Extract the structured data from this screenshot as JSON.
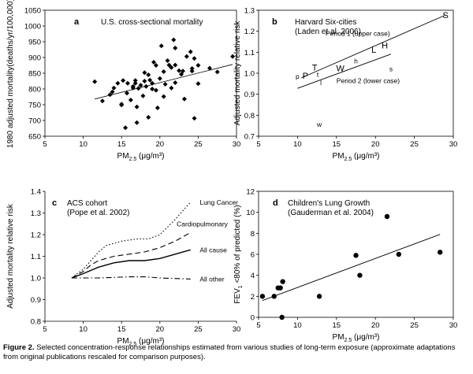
{
  "panels": [
    {
      "letter": "a",
      "title": [
        "U.S. cross-sectional mortality"
      ],
      "ylabel": "1980 adjusted mortality(deaths/yr/100,000)",
      "xlabel": "PM2.5 (μg/m³)",
      "xticks": [
        "5",
        "10",
        "15",
        "20",
        "25",
        "30"
      ],
      "yticks": [
        "650",
        "700",
        "750",
        "800",
        "850",
        "900",
        "950",
        "1000",
        "1050"
      ],
      "annotations": []
    },
    {
      "letter": "b",
      "title": [
        "Harvard Six-cities",
        "(Laden et al. 2006)"
      ],
      "ylabel": "Adjusted mortality relative risk",
      "xlabel": "PM2.5 (μg/m³)",
      "xticks": [
        "5",
        "10",
        "15",
        "20",
        "25",
        "30"
      ],
      "yticks": [
        "0.7",
        "0.8",
        "0.9",
        "1.0",
        "1.1",
        "1.2",
        "1.3"
      ],
      "annotations": [
        "Period 1 (upper case)",
        "Period 2 (lower case)"
      ]
    },
    {
      "letter": "c",
      "title": [
        "ACS cohort",
        "(Pope et al. 2002)"
      ],
      "ylabel": "Adjusted mortality relative risk",
      "xlabel": "PM2.5 (μg/m³)",
      "xticks": [
        "5",
        "10",
        "15",
        "20",
        "25",
        "30"
      ],
      "yticks": [
        "0.8",
        "0.9",
        "1.0",
        "1.1",
        "1.2",
        "1.3",
        "1.4"
      ],
      "annotations": []
    },
    {
      "letter": "d",
      "title": [
        "Children's Lung Growth",
        "(Gauderman et al. 2004)"
      ],
      "ylabel": "FEV1 <80% of predicted (%)",
      "xlabel": "PM2.5 (μg/m³)",
      "xticks": [
        "5",
        "10",
        "15",
        "20",
        "25",
        "30"
      ],
      "yticks": [
        "0",
        "2",
        "4",
        "6",
        "8",
        "10",
        "12"
      ],
      "annotations": []
    }
  ],
  "chart_data": [
    {
      "type": "scatter",
      "panel": "a",
      "xlim": [
        5,
        30
      ],
      "ylim": [
        650,
        1050
      ],
      "grid": false,
      "points": [
        [
          11.5,
          823
        ],
        [
          12.5,
          762
        ],
        [
          13.5,
          782
        ],
        [
          13.8,
          791
        ],
        [
          14,
          803
        ],
        [
          14.5,
          818
        ],
        [
          15,
          752
        ],
        [
          15,
          749
        ],
        [
          15.2,
          827
        ],
        [
          15.5,
          677
        ],
        [
          15.7,
          787
        ],
        [
          15.8,
          818
        ],
        [
          16.2,
          765
        ],
        [
          16.5,
          803
        ],
        [
          16.5,
          808
        ],
        [
          16.8,
          818
        ],
        [
          16.8,
          827
        ],
        [
          17,
          743
        ],
        [
          17,
          693
        ],
        [
          17.2,
          802
        ],
        [
          17.5,
          812
        ],
        [
          17.8,
          778
        ],
        [
          18,
          852
        ],
        [
          18,
          825
        ],
        [
          18.2,
          808
        ],
        [
          18.5,
          845
        ],
        [
          18.5,
          710
        ],
        [
          18.7,
          828
        ],
        [
          19,
          800
        ],
        [
          19,
          818
        ],
        [
          19.2,
          885
        ],
        [
          19.5,
          875
        ],
        [
          19.5,
          796
        ],
        [
          19.7,
          740
        ],
        [
          20,
          833
        ],
        [
          20.2,
          937
        ],
        [
          20.5,
          776
        ],
        [
          20.5,
          855
        ],
        [
          20.7,
          815
        ],
        [
          21,
          890
        ],
        [
          21.2,
          876
        ],
        [
          21.5,
          803
        ],
        [
          21.5,
          868
        ],
        [
          21.8,
          956
        ],
        [
          22,
          930
        ],
        [
          22,
          820
        ],
        [
          22,
          876
        ],
        [
          22.5,
          858
        ],
        [
          22.8,
          847
        ],
        [
          23,
          857
        ],
        [
          23.2,
          768
        ],
        [
          23.5,
          903
        ],
        [
          24,
          918
        ],
        [
          24.2,
          857
        ],
        [
          24.2,
          865
        ],
        [
          24.5,
          707
        ],
        [
          24.5,
          897
        ],
        [
          25,
          817
        ],
        [
          25,
          875
        ],
        [
          26.5,
          866
        ],
        [
          27.5,
          854
        ],
        [
          29.5,
          903
        ]
      ],
      "fit": [
        [
          11.5,
          768
        ],
        [
          29.5,
          878
        ]
      ]
    },
    {
      "type": "scatter",
      "panel": "b",
      "xlim": [
        5,
        30
      ],
      "ylim": [
        0.7,
        1.3
      ],
      "grid": false,
      "series": [
        {
          "name": "Period 1 (upper case)",
          "points": [
            [
              "P",
              11.0,
              0.989
            ],
            [
              "T",
              12.2,
              1.029
            ],
            [
              "W",
              15.5,
              1.024
            ],
            [
              "L",
              19.8,
              1.113
            ],
            [
              "H",
              21.2,
              1.134
            ],
            [
              "S",
              29.0,
              1.277
            ]
          ],
          "fit": [
            [
              10.5,
              0.978
            ],
            [
              29.0,
              1.277
            ]
          ]
        },
        {
          "name": "Period 2 (lower case)",
          "points": [
            [
              "p",
              10.0,
              0.989
            ],
            [
              "t",
              12.6,
              0.999
            ],
            [
              "l",
              13.0,
              0.958
            ],
            [
              "w",
              12.8,
              0.76
            ],
            [
              "h",
              17.5,
              1.062
            ],
            [
              "s",
              22.0,
              1.024
            ]
          ],
          "fit": [
            [
              10.0,
              0.928
            ],
            [
              22.0,
              1.091
            ]
          ]
        }
      ]
    },
    {
      "type": "line",
      "panel": "c",
      "xlim": [
        5,
        30
      ],
      "ylim": [
        0.8,
        1.4
      ],
      "grid": false,
      "series": [
        {
          "name": "Lung Cancer",
          "style": "dotted",
          "points": [
            [
              8.5,
              1.0
            ],
            [
              10,
              1.04
            ],
            [
              11,
              1.08
            ],
            [
              12,
              1.12
            ],
            [
              13,
              1.15
            ],
            [
              15,
              1.17
            ],
            [
              17,
              1.18
            ],
            [
              18.5,
              1.18
            ],
            [
              20,
              1.2
            ],
            [
              22,
              1.27
            ],
            [
              24,
              1.35
            ]
          ]
        },
        {
          "name": "Cardiopulmonary",
          "style": "dashed",
          "points": [
            [
              8.5,
              1.0
            ],
            [
              10,
              1.03
            ],
            [
              11,
              1.06
            ],
            [
              12,
              1.08
            ],
            [
              14,
              1.1
            ],
            [
              16,
              1.11
            ],
            [
              18,
              1.12
            ],
            [
              20,
              1.14
            ],
            [
              22,
              1.17
            ],
            [
              24,
              1.21
            ]
          ]
        },
        {
          "name": "All cause",
          "style": "solid",
          "points": [
            [
              8.5,
              1.0
            ],
            [
              10,
              1.02
            ],
            [
              12,
              1.05
            ],
            [
              14,
              1.07
            ],
            [
              16,
              1.08
            ],
            [
              18,
              1.08
            ],
            [
              20,
              1.09
            ],
            [
              22,
              1.11
            ],
            [
              24,
              1.13
            ]
          ]
        },
        {
          "name": "All other",
          "style": "dashdot",
          "points": [
            [
              8.5,
              1.0
            ],
            [
              12,
              1.0
            ],
            [
              16,
              1.005
            ],
            [
              18,
              1.005
            ],
            [
              20,
              1.0
            ],
            [
              24,
              0.995
            ]
          ]
        }
      ]
    },
    {
      "type": "scatter",
      "panel": "d",
      "xlim": [
        5,
        30
      ],
      "ylim": [
        0,
        12
      ],
      "grid": false,
      "points": [
        [
          5.5,
          2.0
        ],
        [
          7,
          2.0
        ],
        [
          7.5,
          2.8
        ],
        [
          7.8,
          2.8
        ],
        [
          8.1,
          3.4
        ],
        [
          8.0,
          0.0
        ],
        [
          12.8,
          2.0
        ],
        [
          17.5,
          5.9
        ],
        [
          18,
          4.0
        ],
        [
          21.5,
          9.6
        ],
        [
          23,
          6.0
        ],
        [
          28.3,
          6.2
        ]
      ],
      "fit": [
        [
          5.5,
          1.6
        ],
        [
          28.3,
          7.9
        ]
      ]
    }
  ],
  "caption": {
    "label": "Figure 2.",
    "text": " Selected concentration-response relationships estimated from various studies of long-term exposure (approximate adaptations from original publications rescaled for comparison purposes)."
  }
}
